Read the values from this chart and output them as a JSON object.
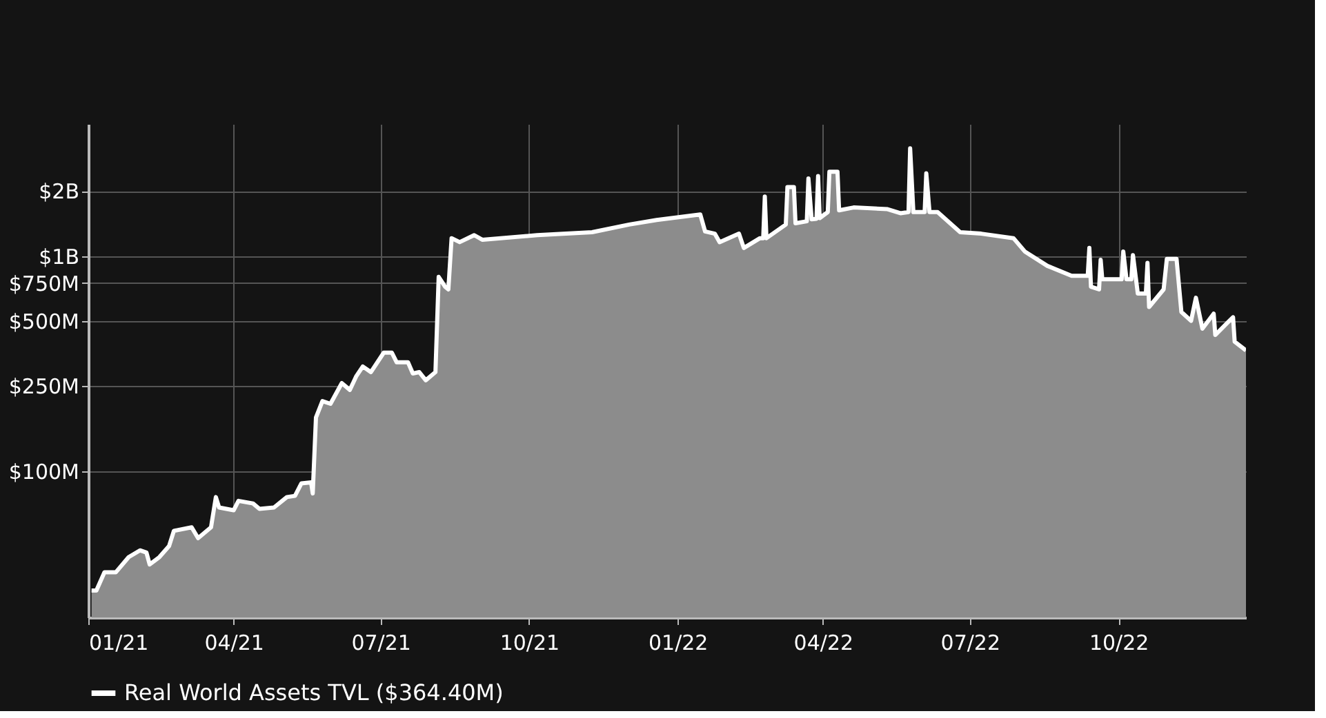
{
  "chart_data": {
    "type": "area",
    "x": [
      "2021-01-03",
      "2021-01-06",
      "2021-01-11",
      "2021-01-16",
      "2021-01-18",
      "2021-01-26",
      "2021-02-02",
      "2021-02-06",
      "2021-02-08",
      "2021-02-14",
      "2021-02-20",
      "2021-02-23",
      "2021-03-06",
      "2021-03-10",
      "2021-03-18",
      "2021-03-21",
      "2021-03-23",
      "2021-04-01",
      "2021-04-04",
      "2021-04-13",
      "2021-04-17",
      "2021-04-26",
      "2021-05-04",
      "2021-05-09",
      "2021-05-13",
      "2021-05-19",
      "2021-05-20",
      "2021-05-22",
      "2021-05-26",
      "2021-05-31",
      "2021-06-07",
      "2021-06-12",
      "2021-06-16",
      "2021-06-20",
      "2021-06-25",
      "2021-07-03",
      "2021-07-08",
      "2021-07-11",
      "2021-07-18",
      "2021-07-21",
      "2021-07-25",
      "2021-07-29",
      "2021-08-04",
      "2021-08-06",
      "2021-08-10",
      "2021-08-12",
      "2021-08-14",
      "2021-08-19",
      "2021-08-28",
      "2021-09-02",
      "2021-10-06",
      "2021-11-09",
      "2021-12-02",
      "2021-12-19",
      "2022-01-15",
      "2022-01-18",
      "2022-01-24",
      "2022-01-27",
      "2022-02-08",
      "2022-02-11",
      "2022-02-21",
      "2022-02-23",
      "2022-02-24",
      "2022-02-25",
      "2022-03-09",
      "2022-03-10",
      "2022-03-14",
      "2022-03-15",
      "2022-03-22",
      "2022-03-23",
      "2022-03-25",
      "2022-03-28",
      "2022-03-29",
      "2022-03-30",
      "2022-04-04",
      "2022-04-05",
      "2022-04-10",
      "2022-04-11",
      "2022-04-20",
      "2022-05-11",
      "2022-05-19",
      "2022-05-24",
      "2022-05-25",
      "2022-05-27",
      "2022-06-03",
      "2022-06-04",
      "2022-06-06",
      "2022-06-11",
      "2022-06-25",
      "2022-07-08",
      "2022-07-28",
      "2022-08-04",
      "2022-08-18",
      "2022-09-02",
      "2022-09-12",
      "2022-09-13",
      "2022-09-14",
      "2022-09-19",
      "2022-09-20",
      "2022-09-21",
      "2022-10-03",
      "2022-10-04",
      "2022-10-06",
      "2022-10-09",
      "2022-10-10",
      "2022-10-13",
      "2022-10-18",
      "2022-10-19",
      "2022-10-20",
      "2022-10-29",
      "2022-10-31",
      "2022-11-06",
      "2022-11-09",
      "2022-11-15",
      "2022-11-18",
      "2022-11-22",
      "2022-11-29",
      "2022-11-30",
      "2022-12-11",
      "2022-12-12",
      "2022-12-19"
    ],
    "series": [
      {
        "name": "Real World Assets TVL ($364.40M)",
        "color": "#ffffff",
        "values": [
          28000000.0,
          28000000.0,
          34000000.0,
          34000000.0,
          34000000.0,
          40000000.0,
          43000000.0,
          42000000.0,
          37000000.0,
          40000000.0,
          45000000.0,
          53000000.0,
          55000000.0,
          49000000.0,
          55000000.0,
          76000000.0,
          68000000.0,
          66000000.0,
          73000000.0,
          71000000.0,
          67000000.0,
          68000000.0,
          76000000.0,
          77000000.0,
          88000000.0,
          89000000.0,
          79000000.0,
          178000000.0,
          212000000.0,
          206000000.0,
          257000000.0,
          239000000.0,
          277000000.0,
          307000000.0,
          289000000.0,
          356000000.0,
          356000000.0,
          321000000.0,
          321000000.0,
          285000000.0,
          289000000.0,
          265000000.0,
          289000000.0,
          800000000.0,
          720000000.0,
          700000000.0,
          1210000000.0,
          1160000000.0,
          1250000000.0,
          1190000000.0,
          1250000000.0,
          1290000000.0,
          1400000000.0,
          1470000000.0,
          1560000000.0,
          1300000000.0,
          1270000000.0,
          1160000000.0,
          1270000000.0,
          1090000000.0,
          1210000000.0,
          1210000000.0,
          1890000000.0,
          1210000000.0,
          1400000000.0,
          2090000000.0,
          2090000000.0,
          1420000000.0,
          1450000000.0,
          2290000000.0,
          1480000000.0,
          1490000000.0,
          2350000000.0,
          1500000000.0,
          1600000000.0,
          2460000000.0,
          2460000000.0,
          1630000000.0,
          1680000000.0,
          1650000000.0,
          1580000000.0,
          1600000000.0,
          3160000000.0,
          1600000000.0,
          1600000000.0,
          2420000000.0,
          1600000000.0,
          1600000000.0,
          1290000000.0,
          1270000000.0,
          1210000000.0,
          1050000000.0,
          900000000.0,
          810000000.0,
          810000000.0,
          1090000000.0,
          720000000.0,
          700000000.0,
          960000000.0,
          780000000.0,
          780000000.0,
          1050000000.0,
          780000000.0,
          780000000.0,
          1010000000.0,
          670000000.0,
          670000000.0,
          930000000.0,
          580000000.0,
          700000000.0,
          970000000.0,
          970000000.0,
          550000000.0,
          500000000.0,
          640000000.0,
          460000000.0,
          540000000.0,
          430000000.0,
          520000000.0,
          400000000.0,
          364400000.0
        ]
      }
    ],
    "xlim": [
      "2021-01-01",
      "2022-12-19"
    ],
    "xticks": [
      {
        "value": "2021-01-01",
        "label": "01/21"
      },
      {
        "value": "2021-04-01",
        "label": "04/21"
      },
      {
        "value": "2021-07-01",
        "label": "07/21"
      },
      {
        "value": "2021-10-01",
        "label": "10/21"
      },
      {
        "value": "2022-01-01",
        "label": "01/22"
      },
      {
        "value": "2022-04-01",
        "label": "04/22"
      },
      {
        "value": "2022-07-01",
        "label": "07/22"
      },
      {
        "value": "2022-10-01",
        "label": "10/22"
      }
    ],
    "ylim": [
      21000000.0,
      4100000000.0
    ],
    "yticks": [
      {
        "value": 100000000.0,
        "label": "$100M"
      },
      {
        "value": 250000000.0,
        "label": "$250M"
      },
      {
        "value": 500000000.0,
        "label": "$500M"
      },
      {
        "value": 750000000.0,
        "label": "$750M"
      },
      {
        "value": 1000000000.0,
        "label": "$1B"
      },
      {
        "value": 2000000000.0,
        "label": "$2B"
      }
    ],
    "log": true,
    "grid": true,
    "legend": "bottom"
  }
}
